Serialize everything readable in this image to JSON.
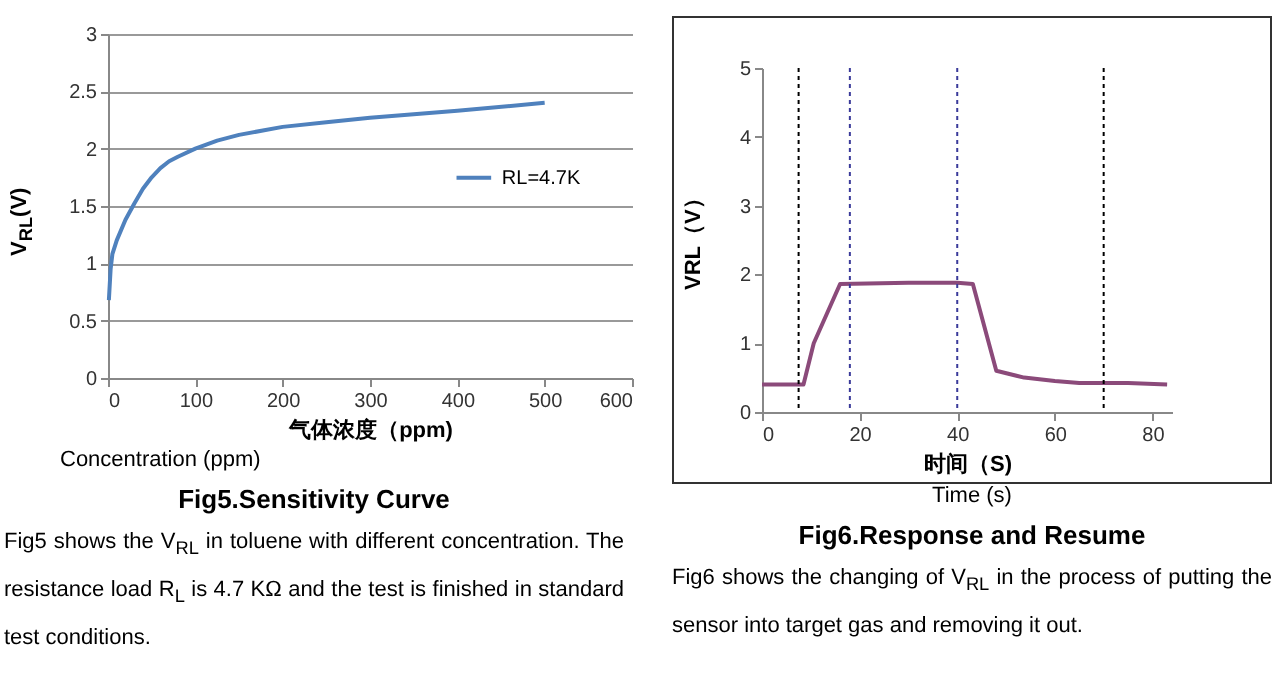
{
  "chart_data": [
    {
      "type": "line",
      "title": "Fig5.Sensitivity Curve",
      "xlabel": "气体浓度（ppm)",
      "ylabel": "V$_{RL}$(V)",
      "annotations": [
        "Concentration (ppm)",
        "Fig5 shows the V$_{RL}$ in toluene with different concentration. The resistance load R$_{L}$ is 4.7 KΩ and the test is finished in standard test conditions."
      ],
      "x": [
        1,
        3,
        5,
        10,
        20,
        30,
        40,
        50,
        60,
        70,
        80,
        100,
        125,
        150,
        200,
        250,
        300,
        400,
        500
      ],
      "series": [
        {
          "name": "RL=4.7K",
          "color": "#4f81bd",
          "values": [
            0.68,
            0.95,
            1.08,
            1.2,
            1.38,
            1.52,
            1.65,
            1.75,
            1.83,
            1.89,
            1.93,
            2.0,
            2.07,
            2.12,
            2.19,
            2.23,
            2.27,
            2.33,
            2.4
          ]
        }
      ],
      "xlim": [
        0,
        600
      ],
      "xticks": [
        0,
        100,
        200,
        300,
        400,
        500,
        600
      ],
      "ylim": [
        0,
        3
      ],
      "yticks": [
        0,
        0.5,
        1,
        1.5,
        2,
        2.5,
        3
      ],
      "grid": "y",
      "legend": "right"
    },
    {
      "type": "line",
      "title": "Fig6.Response and Resume",
      "xlabel": "时间（S)",
      "ylabel": "VRL（V）",
      "annotations": [
        "Time (s)",
        "Fig6 shows the changing of V$_{RL}$ in the process of putting the sensor into target gas and removing it out."
      ],
      "x": [
        0,
        8.5,
        10.6,
        16,
        30,
        40,
        43.2,
        48,
        53.7,
        60,
        65,
        75,
        83
      ],
      "series": [
        {
          "color": "#8b4a7a",
          "values": [
            0.4,
            0.4,
            1.0,
            1.86,
            1.88,
            1.88,
            1.86,
            0.6,
            0.5,
            0.45,
            0.42,
            0.42,
            0.4
          ]
        }
      ],
      "ref_lines": [
        {
          "axis": "x",
          "value": 7.5,
          "color": "#000000",
          "line_style": "dotted"
        },
        {
          "axis": "x",
          "value": 18,
          "color": "#3a3a9a",
          "line_style": "dotted"
        },
        {
          "axis": "x",
          "value": 40,
          "color": "#3a3a9a",
          "line_style": "dotted"
        },
        {
          "axis": "x",
          "value": 70,
          "color": "#000000",
          "line_style": "dotted"
        }
      ],
      "xlim": [
        0,
        84
      ],
      "xticks": [
        0,
        20,
        40,
        60,
        80
      ],
      "ylim": [
        0,
        5
      ],
      "yticks": [
        0,
        1,
        2,
        3,
        4,
        5
      ]
    }
  ]
}
